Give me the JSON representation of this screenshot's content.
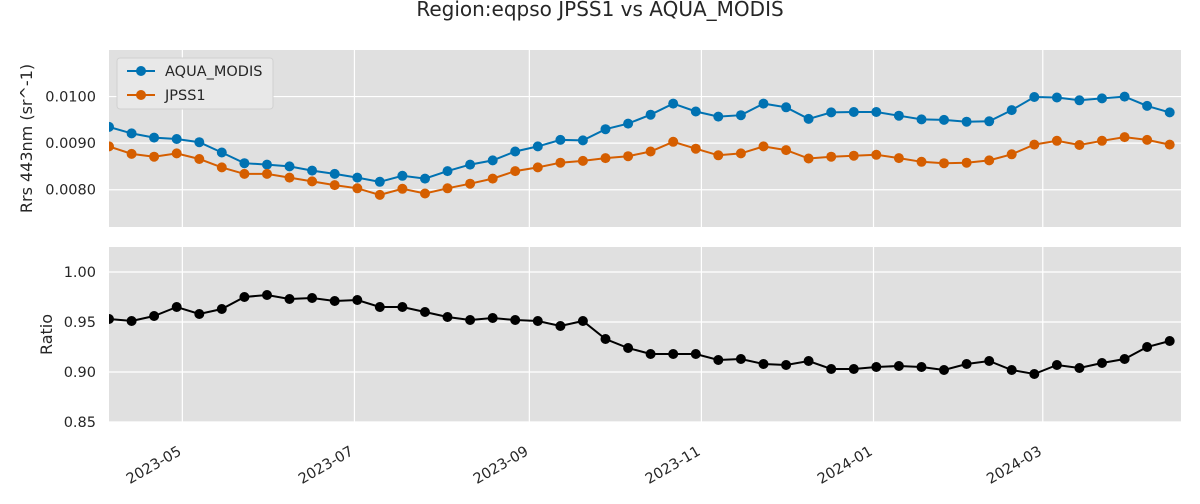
{
  "chart_data": {
    "type": "line",
    "title": "Region:eqpso JPSS1 vs AQUA_MODIS",
    "x_axis": {
      "type": "date",
      "range": [
        "2023-04-05",
        "2024-04-19"
      ],
      "tick_dates": [
        "2023-05-01",
        "2023-07-01",
        "2023-09-01",
        "2023-11-01",
        "2024-01-01",
        "2024-03-01"
      ],
      "tick_labels": [
        "2023-05",
        "2023-07",
        "2023-09",
        "2023-11",
        "2024-01",
        "2024-03"
      ]
    },
    "x": [
      "2023-04-05",
      "2023-04-13",
      "2023-04-21",
      "2023-04-29",
      "2023-05-07",
      "2023-05-15",
      "2023-05-23",
      "2023-05-31",
      "2023-06-08",
      "2023-06-16",
      "2023-06-24",
      "2023-07-02",
      "2023-07-10",
      "2023-07-18",
      "2023-07-26",
      "2023-08-03",
      "2023-08-11",
      "2023-08-19",
      "2023-08-27",
      "2023-09-04",
      "2023-09-12",
      "2023-09-20",
      "2023-09-28",
      "2023-10-06",
      "2023-10-14",
      "2023-10-22",
      "2023-10-30",
      "2023-11-07",
      "2023-11-15",
      "2023-11-23",
      "2023-12-01",
      "2023-12-09",
      "2023-12-17",
      "2023-12-25",
      "2024-01-02",
      "2024-01-10",
      "2024-01-18",
      "2024-01-26",
      "2024-02-03",
      "2024-02-11",
      "2024-02-19",
      "2024-02-27",
      "2024-03-06",
      "2024-03-14",
      "2024-03-22",
      "2024-03-30",
      "2024-04-07",
      "2024-04-15"
    ],
    "panels": [
      {
        "ylabel": "Rrs 443nm (sr^-1)",
        "ylim": [
          0.0072,
          0.011
        ],
        "yticks": [
          0.008,
          0.009,
          0.01
        ],
        "ytick_labels": [
          "0.0080",
          "0.0090",
          "0.0100"
        ],
        "legend_position": "top-left",
        "grid": true,
        "series": [
          {
            "name": "AQUA_MODIS",
            "color": "#0072b2",
            "values": [
              0.00935,
              0.00921,
              0.00912,
              0.00909,
              0.00902,
              0.0088,
              0.00857,
              0.00854,
              0.0085,
              0.00841,
              0.00834,
              0.00826,
              0.00817,
              0.0083,
              0.00824,
              0.0084,
              0.00854,
              0.00863,
              0.00882,
              0.00893,
              0.00907,
              0.00906,
              0.0093,
              0.00942,
              0.00961,
              0.00985,
              0.00968,
              0.00957,
              0.0096,
              0.00985,
              0.00977,
              0.00952,
              0.00966,
              0.00967,
              0.00967,
              0.00959,
              0.00951,
              0.0095,
              0.00946,
              0.00947,
              0.00971,
              0.00999,
              0.00998,
              0.00992,
              0.00996,
              0.01,
              0.0098,
              0.00966
            ]
          },
          {
            "name": "JPSS1",
            "color": "#d55e00",
            "values": [
              0.00893,
              0.00877,
              0.00871,
              0.00878,
              0.00866,
              0.00848,
              0.00834,
              0.00834,
              0.00826,
              0.00818,
              0.0081,
              0.00803,
              0.00789,
              0.00802,
              0.00792,
              0.00803,
              0.00813,
              0.00824,
              0.0084,
              0.00848,
              0.00858,
              0.00862,
              0.00868,
              0.00872,
              0.00882,
              0.00903,
              0.00888,
              0.00874,
              0.00878,
              0.00893,
              0.00885,
              0.00867,
              0.00871,
              0.00873,
              0.00875,
              0.00868,
              0.0086,
              0.00857,
              0.00858,
              0.00863,
              0.00876,
              0.00897,
              0.00905,
              0.00896,
              0.00905,
              0.00913,
              0.00907,
              0.00897
            ]
          }
        ]
      },
      {
        "ylabel": "Ratio",
        "ylim": [
          0.85,
          1.025
        ],
        "yticks": [
          0.85,
          0.9,
          0.95,
          1.0
        ],
        "ytick_labels": [
          "0.85",
          "0.90",
          "0.95",
          "1.00"
        ],
        "grid": true,
        "series": [
          {
            "color": "#000000",
            "values": [
              0.953,
              0.951,
              0.956,
              0.965,
              0.958,
              0.963,
              0.975,
              0.977,
              0.973,
              0.974,
              0.971,
              0.972,
              0.965,
              0.965,
              0.96,
              0.955,
              0.952,
              0.954,
              0.952,
              0.951,
              0.946,
              0.951,
              0.933,
              0.924,
              0.918,
              0.918,
              0.918,
              0.912,
              0.913,
              0.908,
              0.907,
              0.911,
              0.903,
              0.903,
              0.905,
              0.906,
              0.905,
              0.902,
              0.908,
              0.911,
              0.902,
              0.898,
              0.907,
              0.904,
              0.909,
              0.913,
              0.925,
              0.931
            ]
          }
        ]
      }
    ]
  }
}
